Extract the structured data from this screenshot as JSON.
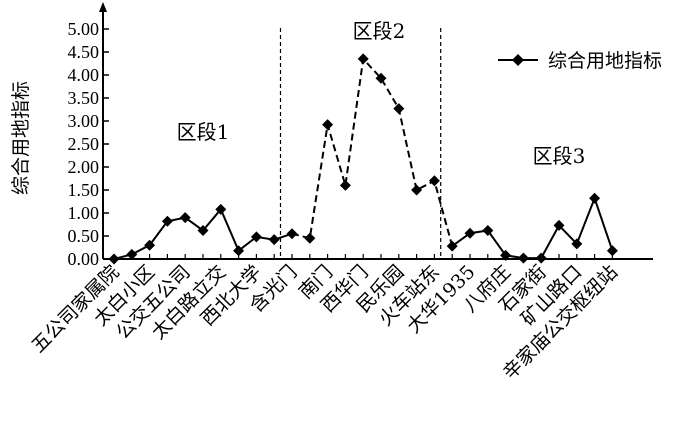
{
  "chart_data": {
    "type": "line",
    "title": "",
    "xlabel": "",
    "ylabel": "综合用地指标",
    "ylim": [
      0,
      5
    ],
    "yticks": [
      "0.00",
      "0.50",
      "1.00",
      "1.50",
      "2.00",
      "2.50",
      "3.00",
      "3.50",
      "4.00",
      "4.50",
      "5.00"
    ],
    "grid": false,
    "legend": {
      "position": "top-right",
      "entries": [
        "综合用地指标"
      ]
    },
    "categories": [
      "五公司家属院",
      "",
      "太白小区",
      "",
      "公交五公司",
      "",
      "太白路立交",
      "",
      "西北大学",
      "",
      "含光门",
      "",
      "南门",
      "",
      "西华门",
      "",
      "民乐园",
      "",
      "火车站东",
      "",
      "大华1935",
      "",
      "八府庄",
      "",
      "石家街",
      "",
      "矿山路口",
      "",
      "辛家庙公交枢纽站"
    ],
    "series": [
      {
        "name": "综合用地指标",
        "style": "mixed-solid-dashed",
        "values": [
          0.0,
          0.1,
          0.3,
          0.82,
          0.9,
          0.62,
          1.08,
          0.18,
          0.48,
          0.42,
          0.55,
          0.45,
          2.92,
          1.6,
          4.35,
          3.93,
          3.27,
          1.5,
          1.7,
          0.28,
          0.56,
          0.62,
          0.08,
          0.02,
          0.02,
          0.73,
          0.33,
          1.32,
          0.18
        ]
      }
    ],
    "segments": [
      {
        "label": "区段1",
        "start": 0,
        "end": 10
      },
      {
        "label": "区段2",
        "start": 10,
        "end": 19
      },
      {
        "label": "区段3",
        "start": 19,
        "end": 28
      }
    ]
  }
}
